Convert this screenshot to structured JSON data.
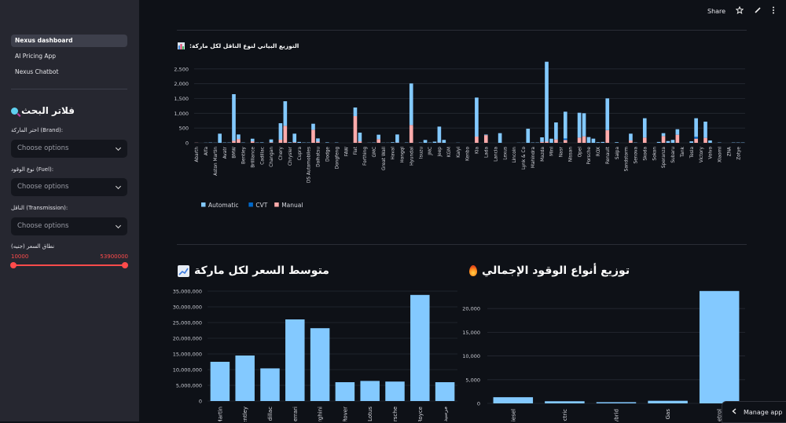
{
  "sidebar": {
    "nav": [
      {
        "label": "Nexus dashboard",
        "active": true
      },
      {
        "label": "AI Pricing App",
        "active": false
      },
      {
        "label": "Nexus Chatbot",
        "active": false
      }
    ],
    "filter_title": "فلاتر البحث",
    "filter_icon": "magnifier-icon",
    "brand_label": "اختر الماركة (Brand):",
    "fuel_label": "نوع الوقود (Fuel):",
    "transmission_label": "الناقل (Transmission):",
    "select_placeholder": "Choose options",
    "price_label": "نطاق السعر (جنيه)",
    "price_min": "10000",
    "price_max": "53900000",
    "accent": "#ff4b4b"
  },
  "header": {
    "share": "Share",
    "icons": [
      "star-icon",
      "pencil-icon",
      "kebab-menu-icon"
    ]
  },
  "manage_app": "Manage app",
  "colors": {
    "automatic": "#83c9ff",
    "cvt": "#0068c9",
    "manual": "#ffabab",
    "bar": "#83c9ff",
    "background": "#0e1117",
    "grid": "#262a33"
  },
  "chart_data": [
    {
      "type": "bar",
      "stacked": true,
      "title": ":التوزيع البياني لنوع الناقل لكل ماركة",
      "title_icon": "bar-chart-icon",
      "yticks": [
        0,
        500,
        1000,
        1500,
        2000,
        2500
      ],
      "ylim": [
        0,
        3000
      ],
      "grid": true,
      "legend_placement": "bottom-left",
      "categories": [
        "Abarth",
        "",
        "Alfa",
        "",
        "Aston Martin",
        "",
        "Avatr",
        "",
        "BMW",
        "",
        "Bentley",
        "",
        "Brilliance",
        "",
        "Cadillac",
        "",
        "Changan",
        "",
        "Chery",
        "",
        "Chrysler",
        "",
        "Cupra",
        "",
        "DS Automobiles",
        "",
        "Daihatsu",
        "",
        "Dodge",
        "",
        "Dongfeng",
        "",
        "FAW",
        "",
        "Fiat",
        "",
        "Forthing",
        "",
        "GMC",
        "",
        "Great Wall",
        "",
        "Haval",
        "",
        "Hongqi",
        "",
        "Hyundai",
        "",
        "Isuzu",
        "",
        "JMC",
        "",
        "Jeep",
        "",
        "KGM",
        "",
        "Kaiyi",
        "",
        "Kenbo",
        "",
        "Kia",
        "",
        "Lada",
        "",
        "Lancia",
        "",
        "Lexus",
        "",
        "Lincoln",
        "",
        "Lynk & Co",
        "",
        "Mahindra",
        "",
        "Mazda",
        "",
        "Mini",
        "",
        "Nasr",
        "",
        "Nissan",
        "",
        "Opel",
        "",
        "Porsche",
        "",
        "ROX",
        "",
        "Renault",
        "",
        "Saipa",
        "",
        "Sandstorm",
        "",
        "Senova",
        "",
        "Skoda",
        "",
        "Sokon",
        "",
        "Speranza",
        "",
        "Subaru",
        "",
        "Tank",
        "",
        "Tesla",
        "",
        "Victory",
        "",
        "Volvo",
        "",
        "Xiaomi",
        "",
        "ZNA",
        "",
        "Zotye",
        ""
      ],
      "series": [
        {
          "name": "Automatic",
          "values": [
            0,
            0,
            5,
            10,
            5,
            310,
            10,
            10,
            1576,
            153,
            10,
            0,
            90,
            10,
            15,
            0,
            95,
            0,
            558,
            832,
            20,
            290,
            30,
            10,
            10,
            204,
            110,
            0,
            15,
            0,
            10,
            0,
            0,
            0,
            292,
            295,
            0,
            5,
            10,
            151,
            5,
            5,
            20,
            273,
            0,
            10,
            1407,
            0,
            10,
            97,
            10,
            40,
            539,
            100,
            0,
            0,
            5,
            0,
            0,
            0,
            1319,
            0,
            20,
            0,
            0,
            327,
            0,
            0,
            0,
            5,
            5,
            478,
            10,
            10,
            156,
            2703,
            140,
            575,
            5,
            906,
            0,
            0,
            841,
            779,
            195,
            142,
            20,
            30,
            1074,
            0,
            20,
            0,
            0,
            230,
            10,
            0,
            655,
            0,
            0,
            30,
            97,
            60,
            100,
            186,
            0,
            0,
            50,
            630,
            0,
            549,
            80,
            0,
            10,
            0,
            0,
            10,
            10,
            10
          ]
        },
        {
          "name": "CVT",
          "values": [
            0,
            0,
            0,
            0,
            0,
            0,
            0,
            0,
            0,
            0,
            0,
            0,
            0,
            0,
            0,
            0,
            0,
            0,
            0,
            0,
            0,
            0,
            0,
            0,
            0,
            0,
            0,
            0,
            0,
            0,
            0,
            0,
            0,
            0,
            0,
            0,
            0,
            0,
            0,
            0,
            0,
            0,
            0,
            0,
            0,
            0,
            0,
            0,
            0,
            0,
            0,
            0,
            0,
            0,
            0,
            0,
            0,
            0,
            0,
            0,
            0,
            0,
            0,
            0,
            0,
            0,
            0,
            0,
            0,
            0,
            0,
            0,
            0,
            0,
            0,
            0,
            0,
            0,
            0,
            50,
            0,
            0,
            0,
            0,
            0,
            0,
            0,
            0,
            5,
            0,
            0,
            0,
            0,
            0,
            0,
            0,
            0,
            0,
            0,
            0,
            0,
            0,
            0,
            0,
            0,
            0,
            0,
            60,
            0,
            0,
            0,
            0,
            0,
            0,
            0,
            0,
            0,
            0
          ]
        },
        {
          "name": "Manual",
          "values": [
            5,
            0,
            0,
            0,
            0,
            0,
            0,
            0,
            70,
            130,
            0,
            0,
            50,
            0,
            0,
            0,
            20,
            0,
            106,
            575,
            0,
            20,
            0,
            0,
            0,
            442,
            40,
            0,
            0,
            0,
            0,
            0,
            0,
            0,
            903,
            50,
            0,
            0,
            0,
            124,
            0,
            0,
            0,
            10,
            0,
            0,
            602,
            0,
            0,
            0,
            0,
            0,
            10,
            0,
            0,
            0,
            0,
            0,
            0,
            0,
            212,
            0,
            260,
            0,
            0,
            0,
            0,
            0,
            0,
            0,
            0,
            0,
            0,
            0,
            30,
            40,
            0,
            115,
            0,
            97,
            0,
            0,
            177,
            221,
            0,
            0,
            0,
            0,
            425,
            0,
            0,
            0,
            0,
            80,
            0,
            0,
            177,
            0,
            0,
            0,
            230,
            0,
            0,
            274,
            0,
            0,
            0,
            142,
            0,
            168,
            0,
            0,
            0,
            0,
            0,
            0,
            0,
            0
          ]
        }
      ]
    },
    {
      "type": "bar",
      "title": "متوسط السعر لكل ماركة",
      "title_icon": "chart-increasing-icon",
      "yticks": [
        0,
        5000000,
        10000000,
        15000000,
        20000000,
        25000000,
        30000000,
        35000000
      ],
      "ytick_labels": [
        "0",
        "5,000,000",
        "10,000,000",
        "15,000,000",
        "20,000,000",
        "25,000,000",
        "30,000,000",
        "35,000,000"
      ],
      "ylim": [
        0,
        35000000
      ],
      "grid": true,
      "categories": [
        "Aston Martin",
        "Bentley",
        "Cadillac",
        "Ferrari",
        "Lamborghini",
        "Land Rover",
        "Lotus",
        "Porsche",
        "Rolls Royce",
        "مرسيدس"
      ],
      "values": [
        12500000,
        14500000,
        10400000,
        26000000,
        23200000,
        6000000,
        6400000,
        6200000,
        33800000,
        6000000
      ]
    },
    {
      "type": "bar",
      "title": "توزيع أنواع الوقود الإجمالي",
      "title_icon": "fire-icon",
      "yticks": [
        0,
        5000,
        10000,
        15000,
        20000
      ],
      "ytick_labels": [
        "0",
        "5,000",
        "10,000",
        "15,000",
        "20,000"
      ],
      "ylim": [
        0,
        24000
      ],
      "grid": true,
      "categories": [
        "Diesel",
        "Electric",
        "Hybrid",
        "Natural Gas",
        "Petrol"
      ],
      "values": [
        1300,
        450,
        250,
        550,
        23700
      ]
    }
  ]
}
